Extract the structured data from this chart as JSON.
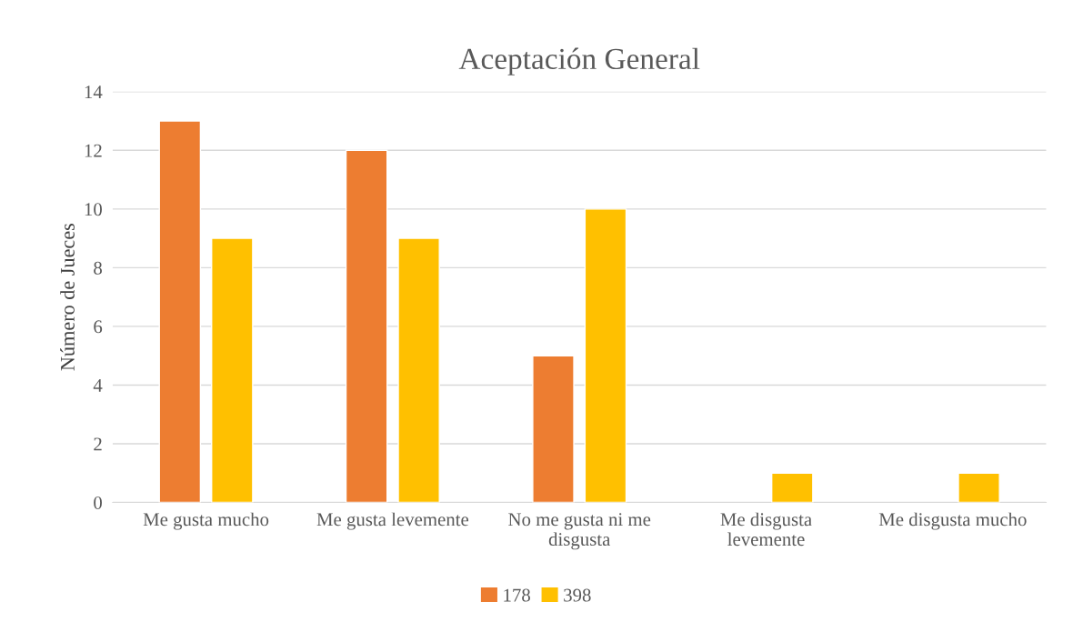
{
  "chart_data": {
    "type": "bar",
    "title": "Aceptación General",
    "ylabel": "Número de Jueces",
    "categories": [
      "Me gusta mucho",
      "Me gusta levemente",
      "No me gusta ni me\ndisgusta",
      "Me disgusta\nlevemente",
      "Me disgusta mucho"
    ],
    "series": [
      {
        "name": "178",
        "color": "#ed7d31",
        "values": [
          13,
          12,
          5,
          null,
          null
        ]
      },
      {
        "name": "398",
        "color": "#ffc000",
        "values": [
          9,
          9,
          10,
          1,
          1
        ]
      }
    ],
    "ylim": [
      0,
      14
    ],
    "yticks": [
      0,
      2,
      4,
      6,
      8,
      10,
      12,
      14
    ],
    "grid": "y",
    "legend": "bottom"
  }
}
